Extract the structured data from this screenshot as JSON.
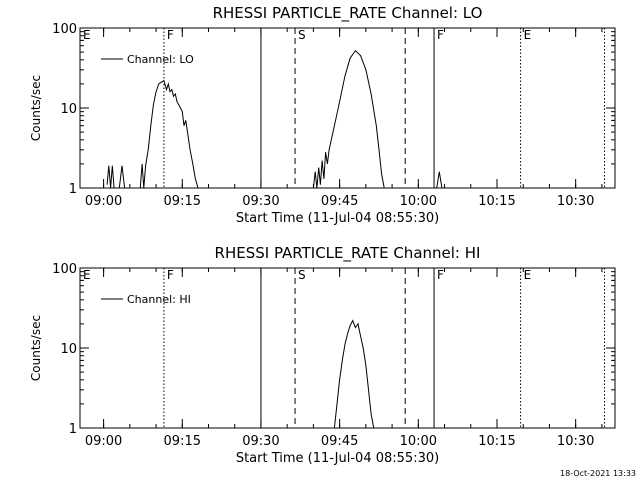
{
  "footer": {
    "timestamp": "18-Oct-2021 13:33"
  },
  "chart_data": [
    {
      "type": "line",
      "title": "RHESSI PARTICLE_RATE Channel: LO",
      "xlabel": "Start Time (11-Jul-04 08:55:30)",
      "ylabel": "Counts/sec",
      "yscale": "log",
      "ylim": [
        1,
        100
      ],
      "xlim": [
        "08:55:30",
        "10:37:30"
      ],
      "x_ticks": [
        "09:00",
        "09:15",
        "09:30",
        "09:45",
        "10:00",
        "10:15",
        "10:30"
      ],
      "y_ticks": [
        "1",
        "10",
        "100"
      ],
      "legend": {
        "entries": [
          "Channel: LO"
        ],
        "placement": "top-left"
      },
      "markers": [
        {
          "label": "E",
          "time": "08:55:30",
          "style": "solid"
        },
        {
          "label": "F",
          "time": "09:11:30",
          "style": "dotted"
        },
        {
          "label": "",
          "time": "09:30:00",
          "style": "solid"
        },
        {
          "label": "S",
          "time": "09:36:30",
          "style": "dashed"
        },
        {
          "label": "",
          "time": "09:57:30",
          "style": "dashed"
        },
        {
          "label": "F",
          "time": "10:03:00",
          "style": "solid"
        },
        {
          "label": "E",
          "time": "10:19:30",
          "style": "dotted"
        },
        {
          "label": "",
          "time": "10:35:30",
          "style": "dotted"
        }
      ],
      "series": [
        {
          "name": "Channel: LO",
          "points": [
            [
              "09:00:40",
              1.1
            ],
            [
              "09:01:00",
              1.9
            ],
            [
              "09:01:20",
              1
            ],
            [
              "09:01:40",
              1.9
            ],
            [
              "09:02:00",
              1
            ],
            [
              "09:03:00",
              1
            ],
            [
              "09:03:30",
              1.9
            ],
            [
              "09:04:00",
              1
            ],
            [
              "09:07:00",
              1
            ],
            [
              "09:07:20",
              2
            ],
            [
              "09:07:40",
              1
            ],
            [
              "09:08:00",
              1.9
            ],
            [
              "09:08:30",
              3
            ],
            [
              "09:09:00",
              6
            ],
            [
              "09:09:30",
              11
            ],
            [
              "09:10:00",
              16
            ],
            [
              "09:10:30",
              20
            ],
            [
              "09:11:00",
              21
            ],
            [
              "09:11:30",
              22
            ],
            [
              "09:12:00",
              17
            ],
            [
              "09:12:20",
              20
            ],
            [
              "09:12:40",
              16
            ],
            [
              "09:13:00",
              17
            ],
            [
              "09:13:20",
              14
            ],
            [
              "09:13:40",
              15
            ],
            [
              "09:14:00",
              12
            ],
            [
              "09:14:20",
              11
            ],
            [
              "09:14:40",
              10
            ],
            [
              "09:15:00",
              9
            ],
            [
              "09:15:20",
              6
            ],
            [
              "09:15:40",
              7
            ],
            [
              "09:16:00",
              5
            ],
            [
              "09:16:30",
              3
            ],
            [
              "09:17:00",
              2
            ],
            [
              "09:17:30",
              1.3
            ],
            [
              "09:18:00",
              1
            ],
            [
              "09:40:00",
              1
            ],
            [
              "09:40:20",
              1.6
            ],
            [
              "09:40:40",
              1
            ],
            [
              "09:41:00",
              1.8
            ],
            [
              "09:41:20",
              1.1
            ],
            [
              "09:41:40",
              2.2
            ],
            [
              "09:42:00",
              1.3
            ],
            [
              "09:42:20",
              2.8
            ],
            [
              "09:42:40",
              2
            ],
            [
              "09:43:00",
              3
            ],
            [
              "09:44:00",
              6
            ],
            [
              "09:45:00",
              12
            ],
            [
              "09:46:00",
              25
            ],
            [
              "09:47:00",
              42
            ],
            [
              "09:48:00",
              52
            ],
            [
              "09:49:00",
              45
            ],
            [
              "09:50:00",
              30
            ],
            [
              "09:51:00",
              15
            ],
            [
              "09:52:00",
              6
            ],
            [
              "09:52:30",
              3
            ],
            [
              "09:53:00",
              1.5
            ],
            [
              "09:53:30",
              1
            ],
            [
              "10:03:30",
              1
            ],
            [
              "10:04:00",
              1.6
            ],
            [
              "10:04:30",
              1
            ]
          ]
        }
      ]
    },
    {
      "type": "line",
      "title": "RHESSI PARTICLE_RATE Channel: HI",
      "xlabel": "Start Time (11-Jul-04 08:55:30)",
      "ylabel": "Counts/sec",
      "yscale": "log",
      "ylim": [
        1,
        100
      ],
      "xlim": [
        "08:55:30",
        "10:37:30"
      ],
      "x_ticks": [
        "09:00",
        "09:15",
        "09:30",
        "09:45",
        "10:00",
        "10:15",
        "10:30"
      ],
      "y_ticks": [
        "1",
        "10",
        "100"
      ],
      "legend": {
        "entries": [
          "Channel: HI"
        ],
        "placement": "top-left"
      },
      "markers": [
        {
          "label": "E",
          "time": "08:55:30",
          "style": "solid"
        },
        {
          "label": "F",
          "time": "09:11:30",
          "style": "dotted"
        },
        {
          "label": "",
          "time": "09:30:00",
          "style": "solid"
        },
        {
          "label": "S",
          "time": "09:36:30",
          "style": "dashed"
        },
        {
          "label": "",
          "time": "09:57:30",
          "style": "dashed"
        },
        {
          "label": "F",
          "time": "10:03:00",
          "style": "solid"
        },
        {
          "label": "E",
          "time": "10:19:30",
          "style": "dotted"
        },
        {
          "label": "",
          "time": "10:35:30",
          "style": "dotted"
        }
      ],
      "series": [
        {
          "name": "Channel: HI",
          "points": [
            [
              "09:44:00",
              1
            ],
            [
              "09:44:30",
              2
            ],
            [
              "09:45:00",
              4
            ],
            [
              "09:45:30",
              7
            ],
            [
              "09:46:00",
              11
            ],
            [
              "09:46:30",
              15
            ],
            [
              "09:47:00",
              19
            ],
            [
              "09:47:30",
              22
            ],
            [
              "09:48:00",
              18
            ],
            [
              "09:48:30",
              20
            ],
            [
              "09:49:00",
              14
            ],
            [
              "09:49:30",
              10
            ],
            [
              "09:50:00",
              6
            ],
            [
              "09:50:30",
              3
            ],
            [
              "09:51:00",
              1.5
            ],
            [
              "09:51:30",
              1
            ]
          ]
        }
      ]
    }
  ]
}
